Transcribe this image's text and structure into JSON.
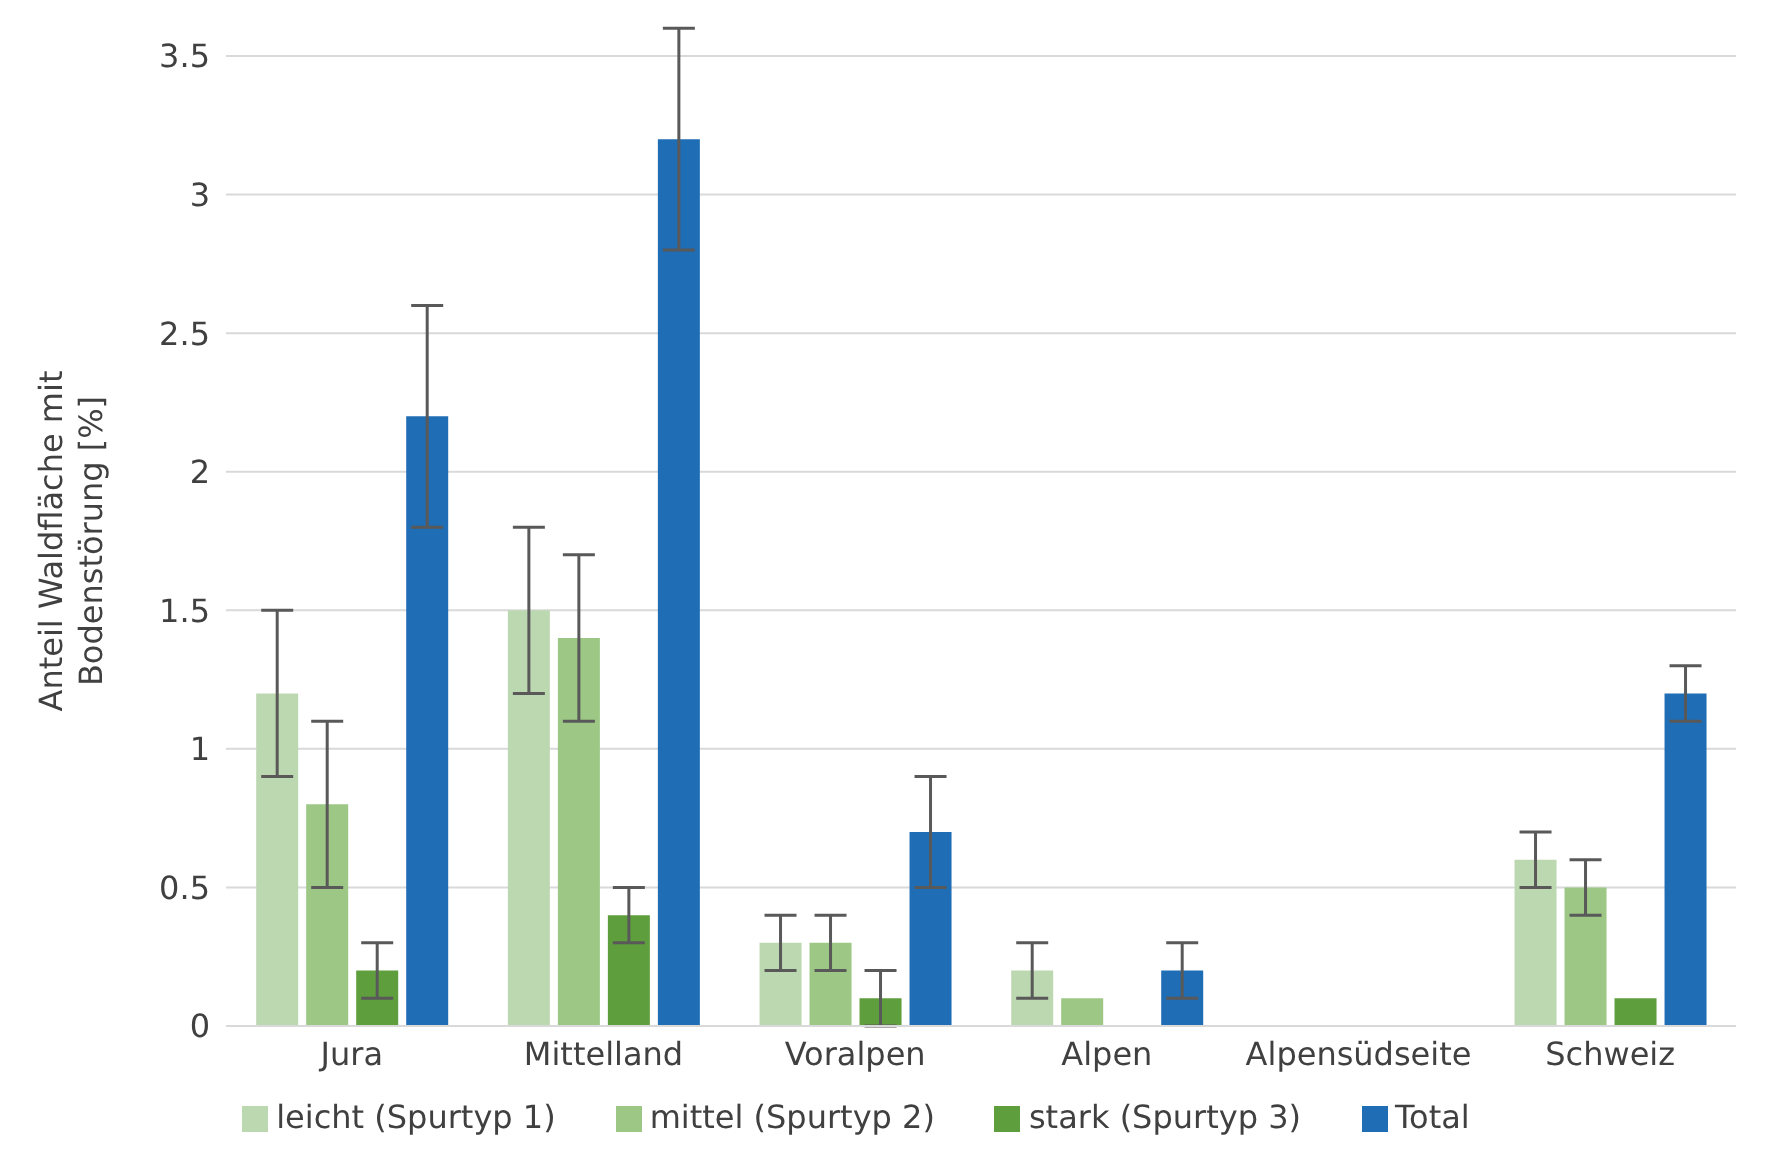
{
  "chart_data": {
    "type": "bar",
    "ylabel": "Anteil Waldfläche mit Bodenstörung [%]",
    "categories": [
      "Jura",
      "Mittelland",
      "Voralpen",
      "Alpen",
      "Alpensüdseite",
      "Schweiz"
    ],
    "series": [
      {
        "name": "leicht (Spurtyp 1)",
        "color": "#bcd8b0",
        "values": [
          1.2,
          1.5,
          0.3,
          0.2,
          null,
          0.6
        ],
        "errors": [
          0.3,
          0.3,
          0.1,
          0.1,
          null,
          0.1
        ]
      },
      {
        "name": "mittel (Spurtyp 2)",
        "color": "#9cc784",
        "values": [
          0.8,
          1.4,
          0.3,
          0.1,
          null,
          0.5
        ],
        "errors": [
          0.3,
          0.3,
          0.1,
          0,
          null,
          0.1
        ]
      },
      {
        "name": "stark (Spurtyp 3)",
        "color": "#5e9e3c",
        "values": [
          0.2,
          0.4,
          0.1,
          null,
          null,
          0.1
        ],
        "errors": [
          0.1,
          0.1,
          0.1,
          null,
          null,
          0
        ]
      },
      {
        "name": "Total",
        "color": "#1f6db5",
        "values": [
          2.2,
          3.2,
          0.7,
          0.2,
          null,
          1.2
        ],
        "errors": [
          0.4,
          0.4,
          0.2,
          0.1,
          null,
          0.1
        ]
      }
    ],
    "ylim": [
      0,
      3.5
    ],
    "yticks": [
      0,
      0.5,
      1,
      1.5,
      2,
      2.5,
      3,
      3.5
    ],
    "grid": "y",
    "legend": "bottom"
  }
}
